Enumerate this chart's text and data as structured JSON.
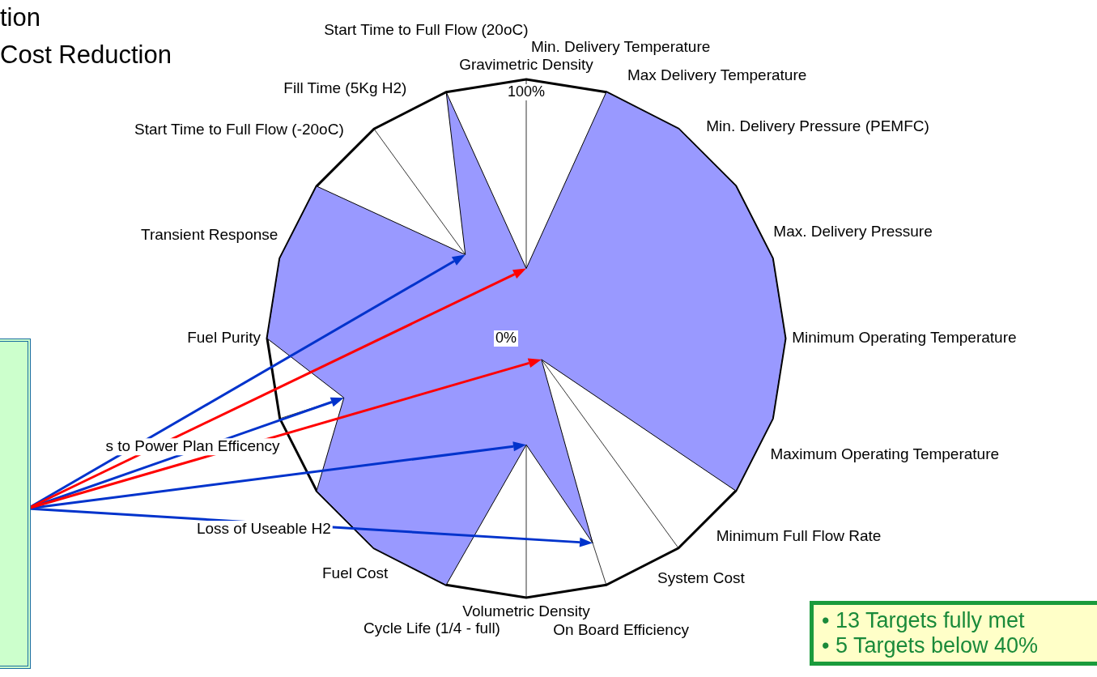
{
  "chart_data": {
    "type": "radar",
    "categories": [
      "Gravimetric Density",
      "Min. Delivery Temperature",
      "Max Delivery Temperature",
      "Min. Delivery Pressure (PEMFC)",
      "Max. Delivery Pressure",
      "Minimum Operating Temperature",
      "Maximum Operating Temperature",
      "Minimum Full Flow Rate",
      "System Cost",
      "On Board Efficiency",
      "Volumetric Density",
      "Cycle Life (1/4 - full)",
      "Fuel Cost",
      "Loss of Useable H2",
      "s to Power Plan Efficency",
      "Fuel Purity",
      "Transient Response",
      "Start Time to Full Flow (-20oC)",
      "Fill Time (5Kg H2)",
      "Start Time to Full Flow (20oC)"
    ],
    "series": [
      {
        "color": "#9999ff",
        "values": [
          27,
          100,
          100,
          100,
          100,
          100,
          100,
          100,
          10,
          83,
          41,
          100,
          100,
          100,
          74,
          100,
          100,
          100,
          40,
          100
        ]
      }
    ],
    "ylim": [
      0,
      100
    ],
    "yticks": [
      {
        "value": 0,
        "label": "0%"
      },
      {
        "value": 100,
        "label": "100%"
      }
    ],
    "grid": true,
    "annotations": [
      "tion",
      "Cost Reduction",
      "• 13 Targets fully met",
      "• 5 Targets below 40%"
    ]
  }
}
